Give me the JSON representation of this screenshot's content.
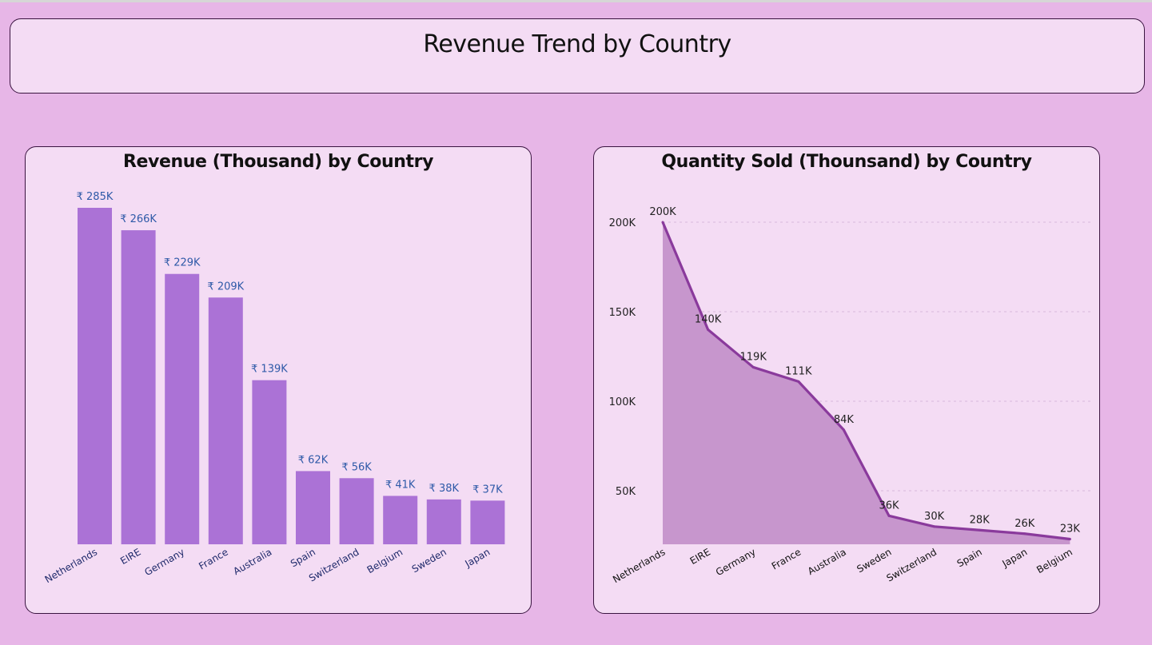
{
  "page": {
    "title": "Revenue Trend by Country"
  },
  "colors": {
    "background": "#e7b6e7",
    "panel": "#f4dcf4",
    "bar": "#ab72d6",
    "line": "#8a3a9c",
    "area": "#c796cd",
    "bar_label": "#2f5aa8"
  },
  "chart_data": [
    {
      "type": "bar",
      "title": "Revenue (Thousand) by Country",
      "categories": [
        "Netherlands",
        "EIRE",
        "Germany",
        "France",
        "Australia",
        "Spain",
        "Switzerland",
        "Belgium",
        "Sweden",
        "Japan"
      ],
      "values": [
        285,
        266,
        229,
        209,
        139,
        62,
        56,
        41,
        38,
        37
      ],
      "data_labels": [
        "₹ 285K",
        "₹ 266K",
        "₹ 229K",
        "₹ 209K",
        "₹ 139K",
        "₹ 62K",
        "₹ 56K",
        "₹ 41K",
        "₹ 38K",
        "₹ 37K"
      ],
      "ylim": [
        0,
        285
      ],
      "grid": false
    },
    {
      "type": "area",
      "title": "Quantity Sold (Thounsand) by Country",
      "categories": [
        "Netherlands",
        "EIRE",
        "Germany",
        "France",
        "Australia",
        "Sweden",
        "Switzerland",
        "Spain",
        "Japan",
        "Belgium"
      ],
      "values": [
        200,
        140,
        119,
        111,
        84,
        36,
        30,
        28,
        26,
        23
      ],
      "data_labels": [
        "200K",
        "140K",
        "119K",
        "111K",
        "84K",
        "36K",
        "30K",
        "28K",
        "26K",
        "23K"
      ],
      "yticks": [
        {
          "value": 200,
          "label": "200K"
        },
        {
          "value": 150,
          "label": "150K"
        },
        {
          "value": 100,
          "label": "100K"
        },
        {
          "value": 50,
          "label": "50K"
        }
      ],
      "ylim": [
        20,
        200
      ],
      "grid": true
    }
  ]
}
